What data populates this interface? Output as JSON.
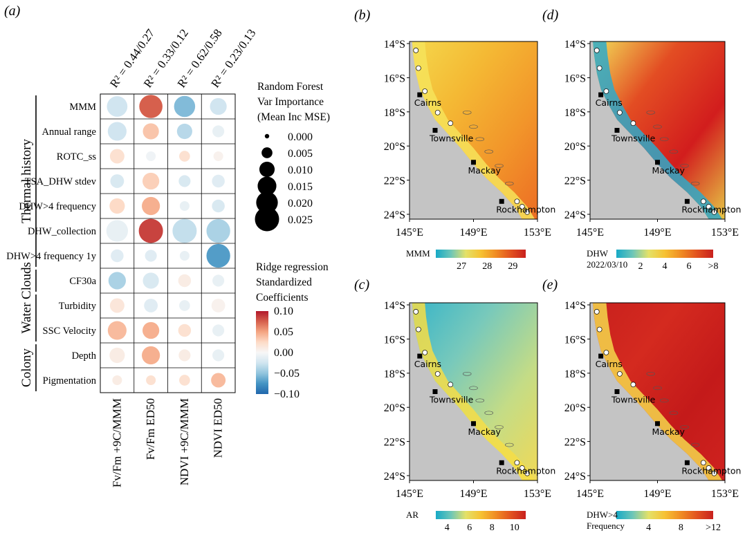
{
  "panel_labels": {
    "a": "(a)",
    "b": "(b)",
    "c": "(c)",
    "d": "(d)",
    "e": "(e)"
  },
  "colors": {
    "land": "#c4c4c4",
    "cmap_diverging": [
      "#2166ac",
      "#4393c3",
      "#92c5de",
      "#d1e5f0",
      "#f7f7f7",
      "#fddbc7",
      "#f4a582",
      "#d6604d",
      "#b2182b"
    ],
    "cmap_thermal": [
      "#17a9c6",
      "#6cc6b8",
      "#e4e168",
      "#f6c233",
      "#f08c23",
      "#e2521f",
      "#c8201e"
    ]
  },
  "chart_data": [
    {
      "type": "heatmap",
      "panel": "(a)",
      "columns": [
        {
          "label": "Fv/Fm +9C/MMM",
          "r2": "R² = 0.44/0.27"
        },
        {
          "label": "Fv/Fm ED50",
          "r2": "R² = 0.33/0.12"
        },
        {
          "label": "NDVI +9C/MMM",
          "r2": "R² = 0.62/0.58"
        },
        {
          "label": "NDVI ED50",
          "r2": "R² = 0.23/0.13"
        }
      ],
      "rows": [
        "MMM",
        "Annual range",
        "ROTC_ss",
        "TSA_DHW stdev",
        "DHW>4 frequency",
        "DHW_collection",
        "DHW>4 frequency 1y",
        "CF30a",
        "Turbidity",
        "SSC Velocity",
        "Depth",
        "Pigmentation"
      ],
      "groups": [
        {
          "label": "Thermal history",
          "rows": [
            0,
            6
          ]
        },
        {
          "label": "Clouds",
          "rows": [
            7,
            7
          ]
        },
        {
          "label": "Water",
          "rows": [
            8,
            9
          ]
        },
        {
          "label": "Colony",
          "rows": [
            10,
            11
          ]
        }
      ],
      "importance": [
        [
          0.018,
          0.023,
          0.019,
          0.012
        ],
        [
          0.015,
          0.011,
          0.01,
          0.006
        ],
        [
          0.009,
          0.004,
          0.005,
          0.004
        ],
        [
          0.008,
          0.012,
          0.006,
          0.007
        ],
        [
          0.01,
          0.014,
          0.004,
          0.007
        ],
        [
          0.02,
          0.025,
          0.025,
          0.024
        ],
        [
          0.007,
          0.006,
          0.004,
          0.024
        ],
        [
          0.013,
          0.011,
          0.007,
          0.006
        ],
        [
          0.009,
          0.008,
          0.005,
          0.008
        ],
        [
          0.015,
          0.012,
          0.007,
          0.006
        ],
        [
          0.01,
          0.014,
          0.006,
          0.006
        ],
        [
          0.004,
          0.004,
          0.005,
          0.009
        ]
      ],
      "coefficients": [
        [
          -0.025,
          0.075,
          -0.055,
          -0.025
        ],
        [
          -0.025,
          0.035,
          -0.035,
          -0.01
        ],
        [
          0.02,
          -0.005,
          0.02,
          0.005
        ],
        [
          -0.02,
          0.03,
          -0.02,
          -0.015
        ],
        [
          0.025,
          0.045,
          -0.01,
          -0.02
        ],
        [
          -0.01,
          0.085,
          -0.03,
          -0.04
        ],
        [
          -0.015,
          -0.015,
          -0.01,
          -0.07
        ],
        [
          -0.04,
          -0.02,
          0.01,
          -0.01
        ],
        [
          0.015,
          -0.015,
          -0.01,
          0.005
        ],
        [
          0.04,
          0.045,
          0.02,
          -0.01
        ],
        [
          0.01,
          0.045,
          0.01,
          -0.01
        ],
        [
          0.01,
          0.02,
          0.02,
          0.04
        ]
      ],
      "size_legend": {
        "title": [
          "Random Forest",
          "Var Importance",
          "(Mean Inc MSE)"
        ],
        "values": [
          0.0,
          0.005,
          0.01,
          0.015,
          0.02,
          0.025
        ],
        "labels": [
          "0.000",
          "0.005",
          "0.010",
          "0.015",
          "0.020",
          "0.025"
        ]
      },
      "color_legend": {
        "title": [
          "Ridge regression",
          "Standardized",
          "Coefficients"
        ],
        "range": [
          -0.1,
          0.1
        ],
        "ticks": [
          "0.10",
          "0.05",
          "0.00",
          "−0.05",
          "−0.10"
        ]
      }
    },
    {
      "type": "map",
      "panels": [
        {
          "id": "b",
          "label": "(b)",
          "variable": "MMM",
          "colorbar_label": [
            "MMM"
          ],
          "colorbar_ticks": [
            "27",
            "28",
            "29"
          ],
          "colorbar_range": [
            26,
            29.5
          ]
        },
        {
          "id": "d",
          "label": "(d)",
          "variable": "DHW",
          "colorbar_label": [
            "DHW",
            "2022/03/10"
          ],
          "colorbar_ticks": [
            "2",
            "4",
            "6",
            ">8"
          ],
          "colorbar_range": [
            0,
            8
          ]
        },
        {
          "id": "c",
          "label": "(c)",
          "variable": "AR",
          "colorbar_label": [
            "AR"
          ],
          "colorbar_ticks": [
            "4",
            "6",
            "8",
            "10"
          ],
          "colorbar_range": [
            3,
            11
          ]
        },
        {
          "id": "e",
          "label": "(e)",
          "variable": "DHW>4 Frequency",
          "colorbar_label": [
            "DHW>4",
            "Frequency"
          ],
          "colorbar_ticks": [
            "4",
            "8",
            ">12"
          ],
          "colorbar_range": [
            0,
            12
          ]
        }
      ],
      "lat_ticks": [
        "14°S",
        "16°S",
        "18°S",
        "20°S",
        "22°S",
        "24°S"
      ],
      "lon_ticks": [
        "145°E",
        "149°E",
        "153°E"
      ],
      "cities": [
        "Cairns",
        "Townsville",
        "Mackay",
        "Rockhampton"
      ]
    }
  ]
}
